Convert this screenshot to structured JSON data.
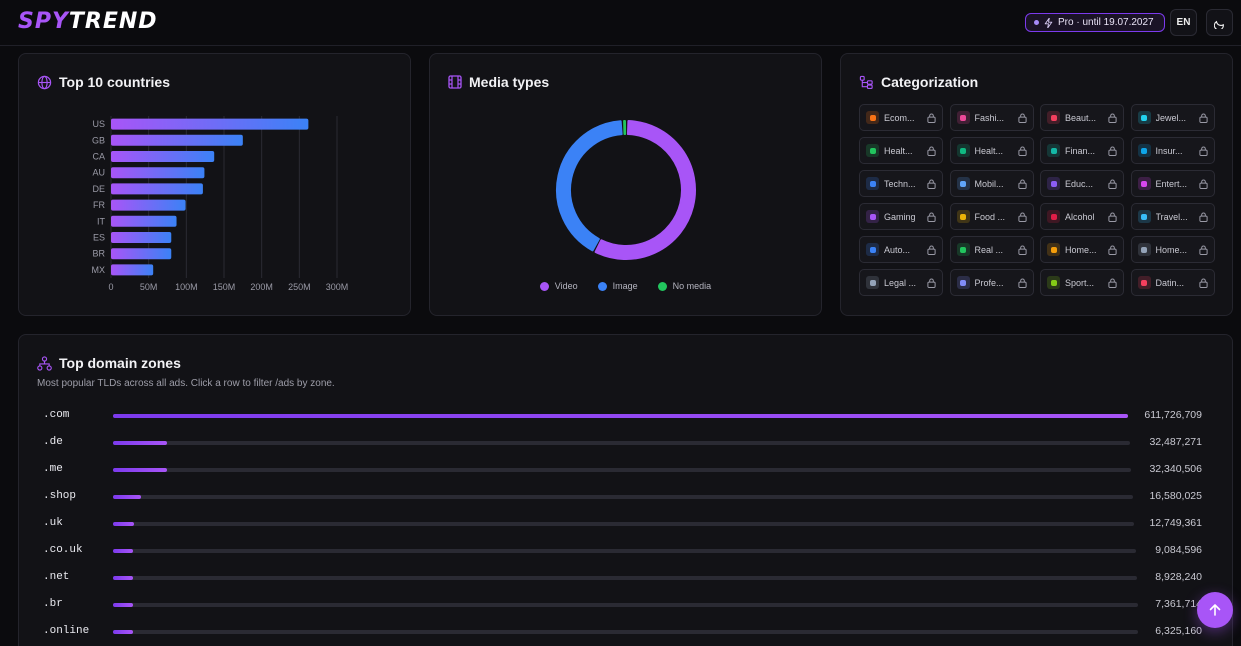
{
  "brand": {
    "part1": "SPY",
    "part2": "TREND"
  },
  "header": {
    "pro_label": "Pro · until 19.07.2027",
    "lang": "EN"
  },
  "countries": {
    "title": "Top 10 countries",
    "chart_data": {
      "type": "bar",
      "orientation": "horizontal",
      "categories": [
        "US",
        "GB",
        "CA",
        "AU",
        "DE",
        "FR",
        "IT",
        "ES",
        "BR",
        "MX"
      ],
      "values": [
        262000000,
        175000000,
        137000000,
        124000000,
        122000000,
        99000000,
        87000000,
        80000000,
        80000000,
        56000000
      ],
      "ticks": [
        "0",
        "50M",
        "100M",
        "150M",
        "200M",
        "250M",
        "300M"
      ],
      "xlim": [
        0,
        300000000
      ],
      "grid": true
    }
  },
  "media": {
    "title": "Media types",
    "chart_data": {
      "type": "pie",
      "donut": true,
      "labels": [
        "Video",
        "Image",
        "No media"
      ],
      "values": [
        57.5,
        41.5,
        1.0
      ],
      "colors": [
        "#a855f7",
        "#3b82f6",
        "#22c55e"
      ]
    }
  },
  "categorization": {
    "title": "Categorization",
    "items": [
      {
        "label": "Ecom...",
        "color": "#f97316"
      },
      {
        "label": "Fashi...",
        "color": "#ec4899"
      },
      {
        "label": "Beaut...",
        "color": "#f43f5e"
      },
      {
        "label": "Jewel...",
        "color": "#22d3ee"
      },
      {
        "label": "Healt...",
        "color": "#22c55e"
      },
      {
        "label": "Healt...",
        "color": "#10b981"
      },
      {
        "label": "Finan...",
        "color": "#14b8a6"
      },
      {
        "label": "Insur...",
        "color": "#0ea5e9"
      },
      {
        "label": "Techn...",
        "color": "#3b82f6"
      },
      {
        "label": "Mobil...",
        "color": "#60a5fa"
      },
      {
        "label": "Educ...",
        "color": "#8b5cf6"
      },
      {
        "label": "Entert...",
        "color": "#d946ef"
      },
      {
        "label": "Gaming",
        "color": "#a855f7"
      },
      {
        "label": "Food ...",
        "color": "#eab308"
      },
      {
        "label": "Alcohol",
        "color": "#e11d48"
      },
      {
        "label": "Travel...",
        "color": "#38bdf8"
      },
      {
        "label": "Auto...",
        "color": "#3b82f6"
      },
      {
        "label": "Real ...",
        "color": "#22c55e"
      },
      {
        "label": "Home...",
        "color": "#f59e0b"
      },
      {
        "label": "Home...",
        "color": "#94a3b8"
      },
      {
        "label": "Legal ...",
        "color": "#94a3b8"
      },
      {
        "label": "Profe...",
        "color": "#818cf8"
      },
      {
        "label": "Sport...",
        "color": "#84cc16"
      },
      {
        "label": "Datin...",
        "color": "#f43f5e"
      }
    ]
  },
  "domains": {
    "title": "Top domain zones",
    "subtitle": "Most popular TLDs across all ads. Click a row to filter /ads by zone.",
    "rows": [
      {
        "zone": ".com",
        "count": "611,726,709",
        "value": 611726709
      },
      {
        "zone": ".de",
        "count": "32,487,271",
        "value": 32487271
      },
      {
        "zone": ".me",
        "count": "32,340,506",
        "value": 32340506
      },
      {
        "zone": ".shop",
        "count": "16,580,025",
        "value": 16580025
      },
      {
        "zone": ".uk",
        "count": "12,749,361",
        "value": 12749361
      },
      {
        "zone": ".co.uk",
        "count": "9,084,596",
        "value": 9084596
      },
      {
        "zone": ".net",
        "count": "8,928,240",
        "value": 8928240
      },
      {
        "zone": ".br",
        "count": "7,361,714",
        "value": 7361714
      },
      {
        "zone": ".online",
        "count": "6,325,160",
        "value": 6325160
      }
    ]
  }
}
